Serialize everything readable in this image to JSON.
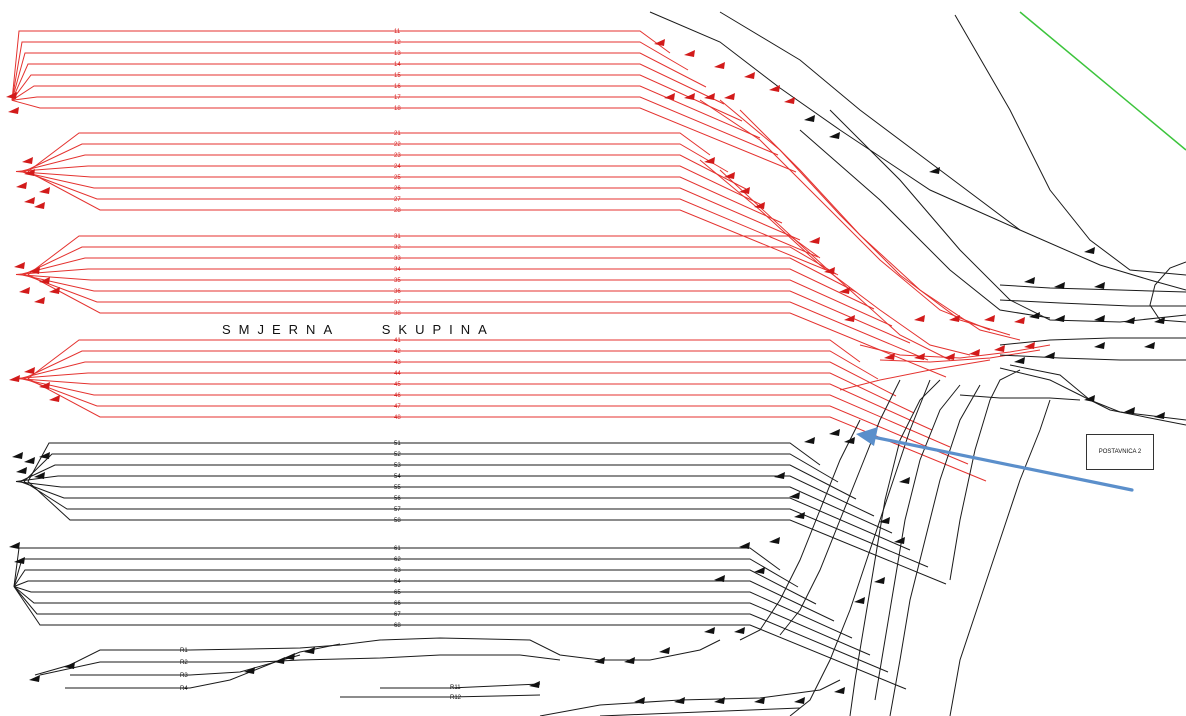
{
  "group_title_left": "SMJERNA",
  "group_title_right": "SKUPINA",
  "building_label": "POSTAVNICA 2",
  "groups": {
    "g1": [
      "11",
      "12",
      "13",
      "14",
      "15",
      "16",
      "17",
      "18"
    ],
    "g2": [
      "21",
      "22",
      "23",
      "24",
      "25",
      "26",
      "27",
      "28"
    ],
    "g3": [
      "31",
      "32",
      "33",
      "34",
      "35",
      "36",
      "37",
      "38"
    ],
    "g4": [
      "41",
      "42",
      "43",
      "44",
      "45",
      "46",
      "47",
      "48"
    ],
    "g5": [
      "51",
      "52",
      "53",
      "54",
      "55",
      "56",
      "57",
      "58"
    ],
    "g6": [
      "61",
      "62",
      "63",
      "64",
      "65",
      "66",
      "67",
      "68"
    ]
  },
  "lower_tracks": [
    "R1",
    "R2",
    "R3",
    "R4"
  ],
  "side_tracks": [
    "R11",
    "R12"
  ],
  "colors": {
    "sorting_tracks": "#e4322f",
    "other_tracks": "#1a1a1a",
    "arrow": "#5b8fcb",
    "boundary": "#3cc43c"
  }
}
